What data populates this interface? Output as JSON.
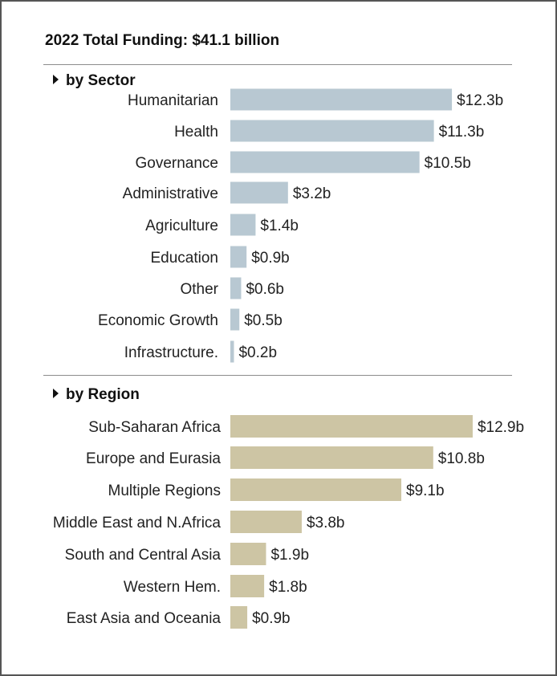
{
  "chart_data": [
    {
      "type": "bar",
      "orientation": "horizontal",
      "title": "2022 Total Funding: $41.1 billion",
      "section_label": "by Sector",
      "color": "#b8c8d2",
      "categories": [
        "Humanitarian",
        "Health",
        "Governance",
        "Administrative",
        "Agriculture",
        "Education",
        "Other",
        "Economic Growth",
        "Infrastructure."
      ],
      "values": [
        12.3,
        11.3,
        10.5,
        3.2,
        1.4,
        0.9,
        0.6,
        0.5,
        0.2
      ],
      "value_labels": [
        "$12.3b",
        "$11.3b",
        "$10.5b",
        "$3.2b",
        "$1.4b",
        "$0.9b",
        "$0.6b",
        "$0.5b",
        "$0.2b"
      ],
      "unit": "billion USD",
      "xlim": [
        0,
        13.5
      ]
    },
    {
      "type": "bar",
      "orientation": "horizontal",
      "section_label": "by Region",
      "color": "#cdc5a4",
      "categories": [
        "Sub-Saharan Africa",
        "Europe and Eurasia",
        "Multiple Regions",
        "Middle East and N.Africa",
        "South and Central Asia",
        "Western Hem.",
        "East Asia and Oceania"
      ],
      "values": [
        12.9,
        10.8,
        9.1,
        3.8,
        1.9,
        1.8,
        0.9
      ],
      "value_labels": [
        "$12.9b",
        "$10.8b",
        "$9.1b",
        "$3.8b",
        "$1.9b",
        "$1.8b",
        "$0.9b"
      ],
      "unit": "billion USD",
      "xlim": [
        0,
        13.5
      ]
    }
  ]
}
